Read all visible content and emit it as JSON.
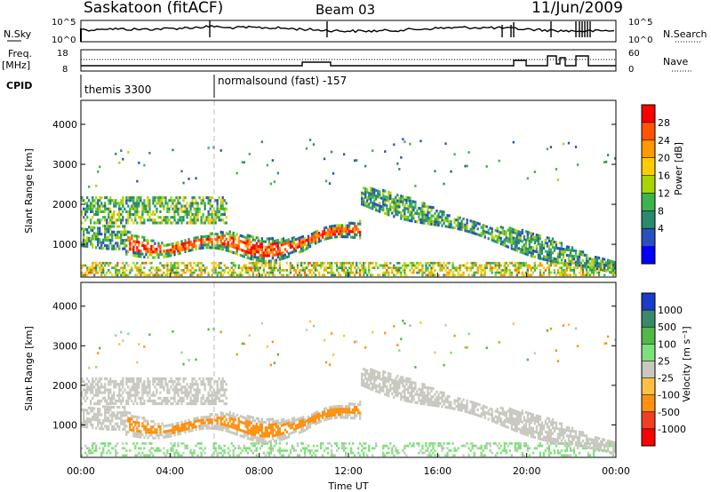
{
  "header": {
    "station": "Saskatoon (fitACF)",
    "beam": "Beam 03",
    "date": "11/Jun/2009"
  },
  "nsky_panel": {
    "left_label": "N.Sky",
    "right_label": "N.Search",
    "left_ticks": [
      "10^5",
      "10^0"
    ],
    "right_ticks": [
      "10^5",
      "10^0"
    ]
  },
  "freq_panel": {
    "left_label_1": "Freq.",
    "left_label_2": "[MHz]",
    "right_label": "Nave",
    "left_ticks": [
      "18",
      "8"
    ],
    "right_ticks": [
      "60",
      "0"
    ]
  },
  "cpid": {
    "label": "CPID",
    "segments": [
      {
        "text": "themis 3300",
        "start_hour": 0
      },
      {
        "text": "normalsound (fast) -157",
        "start_hour": 6
      }
    ]
  },
  "chart_data": [
    {
      "type": "heatmap",
      "title": "Power [dB]",
      "ylabel": "Slant Range [km]",
      "xlabel": "Time UT",
      "ylim": [
        180,
        4600
      ],
      "xlim": [
        0,
        24
      ],
      "yticks": [
        1000,
        2000,
        3000,
        4000
      ],
      "colorbar": {
        "label": "Power [dB]",
        "ticks": [
          "28",
          "24",
          "20",
          "16",
          "12",
          "8",
          "4"
        ],
        "colors": [
          "#ff0000",
          "#ff5500",
          "#ff9900",
          "#ffcc00",
          "#a8d400",
          "#3cb44b",
          "#2a8a6e",
          "#2a4fbf",
          "#0000ff"
        ]
      },
      "features": [
        {
          "label": "intense echo band",
          "t_start": 2.0,
          "t_end": 12.5,
          "range_start": 700,
          "range_end": 1400,
          "value": "20-30 dB"
        },
        {
          "label": "upper echo band",
          "t_start": 0.0,
          "t_end": 6.5,
          "range_start": 1500,
          "range_end": 2200,
          "value": "8-16 dB"
        },
        {
          "label": "descending band",
          "t_start": 12.0,
          "t_end": 20.0,
          "range_start": 800,
          "range_end": 2400,
          "value": "4-12 dB"
        },
        {
          "label": "ground scatter",
          "t_start": 0.0,
          "t_end": 24.0,
          "range_start": 180,
          "range_end": 600,
          "value": "8-24 dB"
        }
      ]
    },
    {
      "type": "heatmap",
      "title": "Velocity [m s-1]",
      "ylabel": "Slant Range [km]",
      "xlabel": "Time UT",
      "ylim": [
        180,
        4600
      ],
      "xlim": [
        0,
        24
      ],
      "yticks": [
        1000,
        2000,
        3000,
        4000
      ],
      "colorbar": {
        "label": "Velocity [m s⁻¹]",
        "ticks": [
          "1000",
          "500",
          "100",
          "25",
          "-25",
          "-100",
          "-500",
          "-1000"
        ],
        "colors": [
          "#1a3cc8",
          "#3a8a6a",
          "#52b848",
          "#7ee07a",
          "#c8c8c0",
          "#ffc040",
          "#ff9010",
          "#f04020",
          "#ff0000"
        ]
      },
      "features": [
        {
          "label": "ground scatter (grey)",
          "t_start": 0.0,
          "t_end": 6.5,
          "range_start": 1600,
          "range_end": 2200,
          "value": "-25 to 25"
        },
        {
          "label": "negative velocity band",
          "t_start": 2.5,
          "t_end": 12.5,
          "range_start": 700,
          "range_end": 1500,
          "value": "-100 to -500"
        },
        {
          "label": "grey descending band",
          "t_start": 12.0,
          "t_end": 21.0,
          "range_start": 800,
          "range_end": 2300,
          "value": "-25 to 25"
        },
        {
          "label": "low-range positive",
          "t_start": 0.0,
          "t_end": 24.0,
          "range_start": 180,
          "range_end": 500,
          "value": "25 to 100"
        }
      ]
    }
  ],
  "time_axis": {
    "label": "Time UT",
    "ticks": [
      "00:00",
      "04:00",
      "08:00",
      "12:00",
      "16:00",
      "20:00",
      "00:00"
    ]
  }
}
